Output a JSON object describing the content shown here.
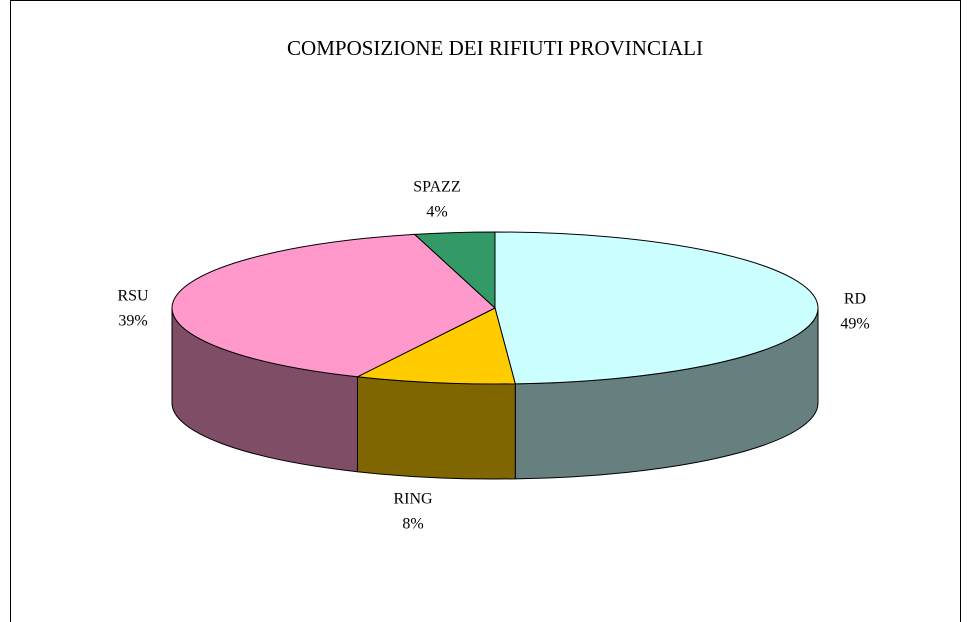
{
  "chart_data": {
    "type": "pie",
    "title": "COMPOSIZIONE DEI RIFIUTI PROVINCIALI",
    "categories": [
      "RD",
      "RING",
      "RSU",
      "SPAZZ"
    ],
    "values": [
      49,
      8,
      39,
      4
    ],
    "value_labels": [
      "49%",
      "8%",
      "39%",
      "4%"
    ],
    "colors": [
      "#ccffff",
      "#ffcc00",
      "#ff99cc",
      "#339966"
    ]
  }
}
